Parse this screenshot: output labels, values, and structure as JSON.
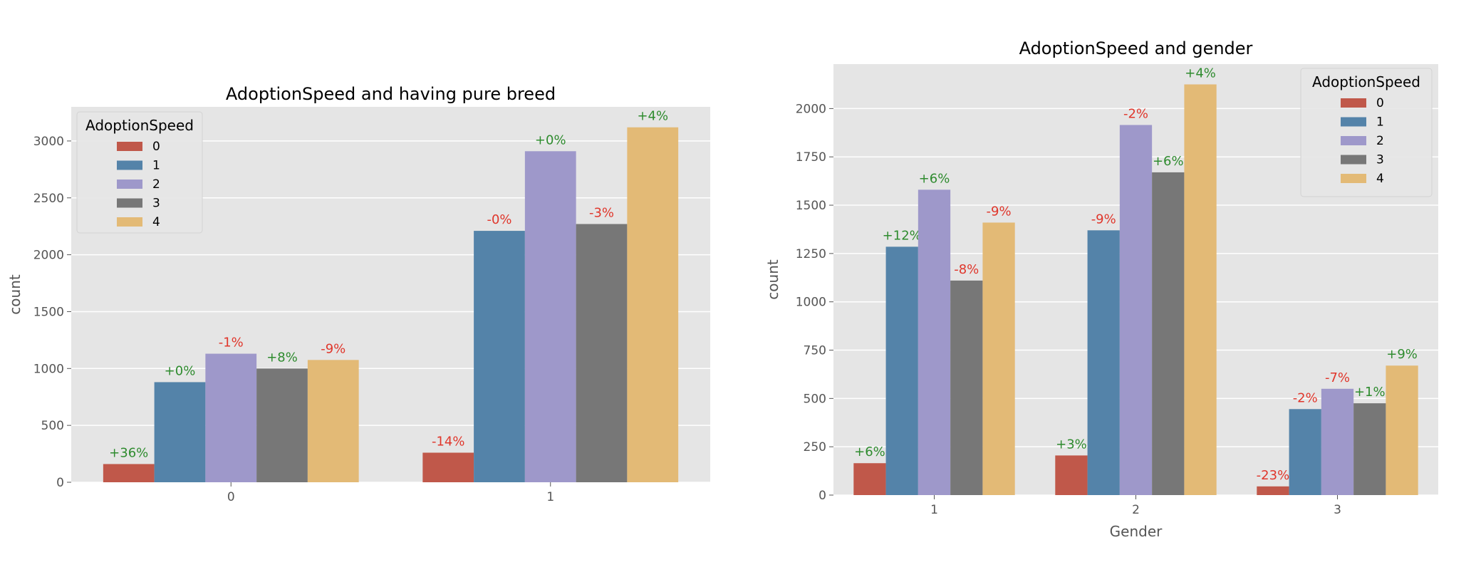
{
  "chart_data": [
    {
      "type": "bar",
      "title": "AdoptionSpeed and having pure breed",
      "xlabel": "",
      "ylabel": "count",
      "categories": [
        "0",
        "1"
      ],
      "ylim": [
        0,
        3300
      ],
      "yticks": [
        0,
        500,
        1000,
        1500,
        2000,
        2500,
        3000
      ],
      "grid": true,
      "legend": {
        "title": "AdoptionSpeed",
        "placement": "top-left"
      },
      "series": [
        {
          "name": "0",
          "color": "#C0584A",
          "values": [
            160,
            260
          ],
          "annotations": [
            "+36%",
            "-14%"
          ]
        },
        {
          "name": "1",
          "color": "#5483A9",
          "values": [
            880,
            2210
          ],
          "annotations": [
            "+0%",
            "-0%"
          ]
        },
        {
          "name": "2",
          "color": "#9E98CA",
          "values": [
            1130,
            2910
          ],
          "annotations": [
            "-1%",
            "+0%"
          ]
        },
        {
          "name": "3",
          "color": "#777777",
          "values": [
            1000,
            2270
          ],
          "annotations": [
            "+8%",
            "-3%"
          ]
        },
        {
          "name": "4",
          "color": "#E3BA76",
          "values": [
            1075,
            3120
          ],
          "annotations": [
            "-9%",
            "+4%"
          ]
        }
      ]
    },
    {
      "type": "bar",
      "title": "AdoptionSpeed and gender",
      "xlabel": "Gender",
      "ylabel": "count",
      "categories": [
        "1",
        "2",
        "3"
      ],
      "ylim": [
        0,
        2230
      ],
      "yticks": [
        0,
        250,
        500,
        750,
        1000,
        1250,
        1500,
        1750,
        2000
      ],
      "grid": true,
      "legend": {
        "title": "AdoptionSpeed",
        "placement": "top-right"
      },
      "series": [
        {
          "name": "0",
          "color": "#C0584A",
          "values": [
            165,
            205,
            45
          ],
          "annotations": [
            "+6%",
            "+3%",
            "-23%"
          ]
        },
        {
          "name": "1",
          "color": "#5483A9",
          "values": [
            1285,
            1370,
            445
          ],
          "annotations": [
            "+12%",
            "-9%",
            "-2%"
          ]
        },
        {
          "name": "2",
          "color": "#9E98CA",
          "values": [
            1580,
            1915,
            550
          ],
          "annotations": [
            "+6%",
            "-2%",
            "-7%"
          ]
        },
        {
          "name": "3",
          "color": "#777777",
          "values": [
            1110,
            1670,
            475
          ],
          "annotations": [
            "-8%",
            "+6%",
            "+1%"
          ]
        },
        {
          "name": "4",
          "color": "#E3BA76",
          "values": [
            1410,
            2125,
            670
          ],
          "annotations": [
            "-9%",
            "+4%",
            "+9%"
          ]
        }
      ]
    }
  ],
  "colors": {
    "plot_background": "#E5E5E5",
    "grid": "#FFFFFF",
    "positive_annotation": "#2E8B2E",
    "negative_annotation": "#E0362B"
  }
}
